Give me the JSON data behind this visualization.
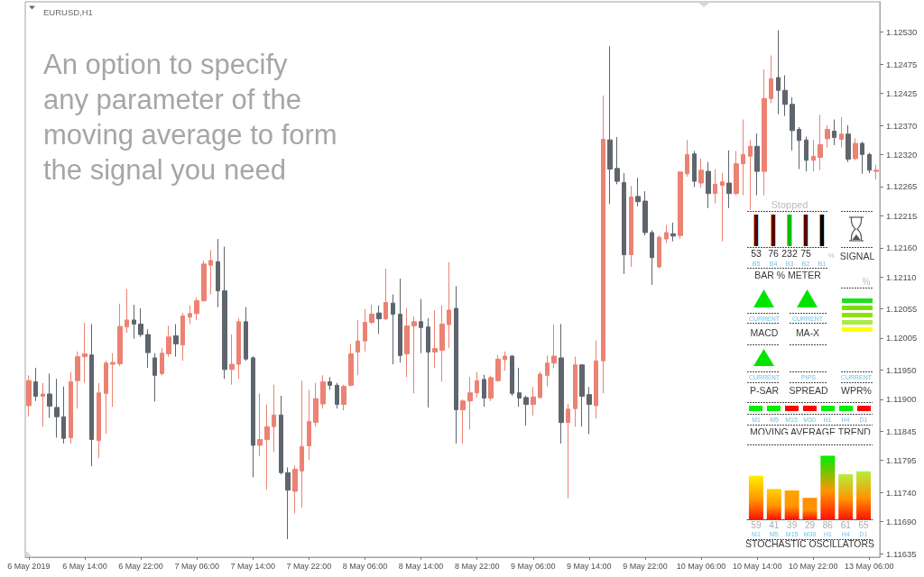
{
  "chart_data": [
    {
      "type": "candlestick",
      "title": "EURUSD,H1",
      "annotations": [
        "An option to specify\nany parameter of the\nmoving average to form\nthe signal you need"
      ],
      "categories": [
        "6 May 2019",
        null,
        null,
        null,
        null,
        null,
        null,
        null,
        "6 May 14:00",
        null,
        null,
        null,
        null,
        null,
        null,
        null,
        "6 May 22:00",
        null,
        null,
        null,
        null,
        null,
        null,
        null,
        "7 May 06:00",
        null,
        null,
        null,
        null,
        null,
        null,
        null,
        "7 May 14:00",
        null,
        null,
        null,
        null,
        null,
        null,
        null,
        "7 May 22:00",
        null,
        null,
        null,
        null,
        null,
        null,
        null,
        "8 May 06:00",
        null,
        null,
        null,
        null,
        null,
        null,
        null,
        "8 May 14:00",
        null,
        null,
        null,
        null,
        null,
        null,
        null,
        "8 May 22:00",
        null,
        null,
        null,
        null,
        null,
        null,
        null,
        "9 May 06:00",
        null,
        null,
        null,
        null,
        null,
        null,
        null,
        "9 May 14:00",
        null,
        null,
        null,
        null,
        null,
        null,
        null,
        "9 May 22:00",
        null,
        null,
        null,
        null,
        null,
        null,
        null,
        "10 May 06:00",
        null,
        null,
        null,
        null,
        null,
        null,
        null,
        "10 May 14:00",
        null,
        null,
        null,
        null,
        null,
        null,
        null,
        "10 May 22:00",
        null,
        null,
        null,
        null,
        null,
        null,
        null,
        "13 May 06:00",
        null
      ],
      "ohlc": [
        [
          1.11889,
          1.11941,
          1.1187,
          1.11932
        ],
        [
          1.1193,
          1.11954,
          1.11897,
          1.11905
        ],
        [
          1.11905,
          1.11928,
          1.11853,
          1.11909
        ],
        [
          1.11909,
          1.11944,
          1.11868,
          1.11888
        ],
        [
          1.11886,
          1.11935,
          1.11834,
          1.1187
        ],
        [
          1.1187,
          1.11922,
          1.11824,
          1.11833
        ],
        [
          1.11834,
          1.11947,
          1.11824,
          1.1193
        ],
        [
          1.11932,
          1.11982,
          1.11884,
          1.11973
        ],
        [
          1.11973,
          1.12031,
          1.11928,
          1.11978
        ],
        [
          1.11976,
          1.12029,
          1.11785,
          1.11831
        ],
        [
          1.11829,
          1.11928,
          1.11799,
          1.11911
        ],
        [
          1.1191,
          1.11966,
          1.11841,
          1.11962
        ],
        [
          1.1196,
          1.11979,
          1.11887,
          1.11963
        ],
        [
          1.11961,
          1.12064,
          1.11957,
          1.12025
        ],
        [
          1.12024,
          1.12089,
          1.12014,
          1.12036
        ],
        [
          1.12036,
          1.12062,
          1.12004,
          1.12029
        ],
        [
          1.12029,
          1.12056,
          1.12007,
          1.12011
        ],
        [
          1.12011,
          1.1202,
          1.11954,
          1.1198
        ],
        [
          1.11971,
          1.11979,
          1.11896,
          1.11941
        ],
        [
          1.11944,
          1.11988,
          1.11941,
          1.11979
        ],
        [
          1.11978,
          1.12026,
          1.11973,
          1.12007
        ],
        [
          1.12009,
          1.12029,
          1.11973,
          1.11995
        ],
        [
          1.11993,
          1.12048,
          1.11966,
          1.12043
        ],
        [
          1.12041,
          1.12061,
          1.12029,
          1.12047
        ],
        [
          1.12047,
          1.12075,
          1.12036,
          1.12069
        ],
        [
          1.12069,
          1.12138,
          1.12067,
          1.12132
        ],
        [
          1.1213,
          1.12156,
          1.1208,
          1.12138
        ],
        [
          1.12136,
          1.12175,
          1.12058,
          1.12086
        ],
        [
          1.12086,
          1.12162,
          1.11935,
          1.11951
        ],
        [
          1.11951,
          1.12011,
          1.11925,
          1.1196
        ],
        [
          1.1196,
          1.12039,
          1.11935,
          1.12033
        ],
        [
          1.12033,
          1.12058,
          1.11966,
          1.11969
        ],
        [
          1.11971,
          1.11974,
          1.11766,
          1.11821
        ],
        [
          1.11821,
          1.1191,
          1.11802,
          1.11831
        ],
        [
          1.11831,
          1.11891,
          1.11745,
          1.11853
        ],
        [
          1.11853,
          1.11925,
          1.11809,
          1.11873
        ],
        [
          1.11873,
          1.11906,
          1.11771,
          1.11774
        ],
        [
          1.11774,
          1.11783,
          1.1166,
          1.11744
        ],
        [
          1.11742,
          1.11786,
          1.11704,
          1.1178
        ],
        [
          1.11777,
          1.11932,
          1.11714,
          1.11819
        ],
        [
          1.1182,
          1.11916,
          1.11796,
          1.11862
        ],
        [
          1.1186,
          1.11928,
          1.11853,
          1.11901
        ],
        [
          1.11892,
          1.11941,
          1.11884,
          1.1193
        ],
        [
          1.1193,
          1.11938,
          1.11916,
          1.11924
        ],
        [
          1.11924,
          1.11928,
          1.11884,
          1.11891
        ],
        [
          1.11891,
          1.11925,
          1.11881,
          1.11922
        ],
        [
          1.11924,
          1.11995,
          1.11922,
          1.11978
        ],
        [
          1.11981,
          1.12036,
          1.11941,
          1.12
        ],
        [
          1.12,
          1.12055,
          1.11982,
          1.12032
        ],
        [
          1.12032,
          1.12062,
          1.12029,
          1.12046
        ],
        [
          1.12048,
          1.12061,
          1.12012,
          1.12038
        ],
        [
          1.12038,
          1.12124,
          1.12036,
          1.12066
        ],
        [
          1.12065,
          1.1208,
          1.1196,
          1.12046
        ],
        [
          1.12046,
          1.12107,
          1.11963,
          1.11975
        ],
        [
          1.11978,
          1.12056,
          1.11938,
          1.12026
        ],
        [
          1.12026,
          1.12042,
          1.1191,
          1.12033
        ],
        [
          1.12033,
          1.12072,
          1.11979,
          1.12023
        ],
        [
          1.12024,
          1.12039,
          1.11886,
          1.11981
        ],
        [
          1.11981,
          1.12053,
          1.11954,
          1.11987
        ],
        [
          1.11984,
          1.12061,
          1.1193,
          1.12029
        ],
        [
          1.12028,
          1.12135,
          1.11988,
          1.12053
        ],
        [
          1.12056,
          1.12094,
          1.11824,
          1.11882
        ],
        [
          1.11882,
          1.119,
          1.11824,
          1.11897
        ],
        [
          1.11897,
          1.11938,
          1.11848,
          1.11911
        ],
        [
          1.11911,
          1.11947,
          1.11903,
          1.11932
        ],
        [
          1.11934,
          1.11942,
          1.11887,
          1.11902
        ],
        [
          1.11902,
          1.1194,
          1.11897,
          1.11937
        ],
        [
          1.11932,
          1.11976,
          1.1193,
          1.11969
        ],
        [
          1.11968,
          1.11982,
          1.11949,
          1.11974
        ],
        [
          1.11974,
          1.11976,
          1.11906,
          1.1191
        ],
        [
          1.11911,
          1.11954,
          1.11887,
          1.11902
        ],
        [
          1.11903,
          1.11906,
          1.11855,
          1.11891
        ],
        [
          1.11891,
          1.11921,
          1.11872,
          1.11904
        ],
        [
          1.11903,
          1.11947,
          1.11902,
          1.11943
        ],
        [
          1.11941,
          1.11975,
          1.11922,
          1.11962
        ],
        [
          1.11962,
          1.12028,
          1.11954,
          1.11974
        ],
        [
          1.11971,
          1.12029,
          1.11824,
          1.1186
        ],
        [
          1.1186,
          1.11892,
          1.1173,
          1.11883
        ],
        [
          1.11884,
          1.11973,
          1.11853,
          1.11959
        ],
        [
          1.11959,
          1.1196,
          1.11853,
          1.11905
        ],
        [
          1.11908,
          1.11921,
          1.1184,
          1.11891
        ],
        [
          1.11889,
          1.12001,
          1.11867,
          1.11966
        ],
        [
          1.11966,
          1.12421,
          1.1191,
          1.12346
        ],
        [
          1.12345,
          1.12506,
          1.12235,
          1.12295
        ],
        [
          1.12296,
          1.1235,
          1.12269,
          1.12274
        ],
        [
          1.12272,
          1.12288,
          1.12115,
          1.12148
        ],
        [
          1.12148,
          1.12266,
          1.12127,
          1.12247
        ],
        [
          1.12248,
          1.1228,
          1.12231,
          1.12239
        ],
        [
          1.1224,
          1.12257,
          1.12181,
          1.12186
        ],
        [
          1.12186,
          1.1219,
          1.12096,
          1.12143
        ],
        [
          1.12127,
          1.12181,
          1.12125,
          1.12178
        ],
        [
          1.12175,
          1.12199,
          1.12168,
          1.12186
        ],
        [
          1.12184,
          1.12203,
          1.12171,
          1.1218
        ],
        [
          1.12181,
          1.12291,
          1.12175,
          1.1229
        ],
        [
          1.12287,
          1.12345,
          1.12282,
          1.1232
        ],
        [
          1.12321,
          1.12326,
          1.12264,
          1.12274
        ],
        [
          1.12271,
          1.12313,
          1.12263,
          1.12293
        ],
        [
          1.12291,
          1.12307,
          1.12228,
          1.12253
        ],
        [
          1.12253,
          1.12295,
          1.12236,
          1.12269
        ],
        [
          1.12267,
          1.12288,
          1.12171,
          1.12273
        ],
        [
          1.12271,
          1.12327,
          1.12228,
          1.12253
        ],
        [
          1.12253,
          1.12326,
          1.1225,
          1.12304
        ],
        [
          1.12304,
          1.1238,
          1.1225,
          1.1232
        ],
        [
          1.12317,
          1.12345,
          1.12225,
          1.12334
        ],
        [
          1.12334,
          1.12356,
          1.1225,
          1.12291
        ],
        [
          1.12291,
          1.12466,
          1.1225,
          1.12416
        ],
        [
          1.12416,
          1.1249,
          1.12408,
          1.1245
        ],
        [
          1.12452,
          1.12533,
          1.12389,
          1.1243
        ],
        [
          1.1243,
          1.12456,
          1.12386,
          1.12406
        ],
        [
          1.12406,
          1.12418,
          1.12327,
          1.12361
        ],
        [
          1.12363,
          1.12367,
          1.12295,
          1.12344
        ],
        [
          1.12345,
          1.12351,
          1.12291,
          1.1231
        ],
        [
          1.1231,
          1.12345,
          1.12291,
          1.12317
        ],
        [
          1.12315,
          1.12388,
          1.12293,
          1.12337
        ],
        [
          1.12347,
          1.1237,
          1.12332,
          1.12363
        ],
        [
          1.1236,
          1.1238,
          1.12336,
          1.12349
        ],
        [
          1.12346,
          1.12384,
          1.12332,
          1.12355
        ],
        [
          1.12355,
          1.1237,
          1.12307,
          1.12312
        ],
        [
          1.12313,
          1.12348,
          1.1231,
          1.12339
        ],
        [
          1.12339,
          1.12342,
          1.12287,
          1.1232
        ],
        [
          1.1232,
          1.12323,
          1.12288,
          1.12293
        ],
        [
          1.12291,
          1.12302,
          1.12277,
          1.12293
        ]
      ],
      "colors": [
        "#ec8273",
        "#5f656d",
        "#ec8273",
        "#5f656d",
        "#5f656d",
        "#5f656d",
        "#ec8273",
        "#ec8273",
        "#ec8273",
        "#5f656d",
        "#ec8273",
        "#ec8273",
        "#ec8273",
        "#ec8273",
        "#ec8273",
        "#5f656d",
        "#5f656d",
        "#5f656d",
        "#5f656d",
        "#ec8273",
        "#ec8273",
        "#5f656d",
        "#ec8273",
        "#ec8273",
        "#ec8273",
        "#ec8273",
        "#ec8273",
        "#5f656d",
        "#5f656d",
        "#ec8273",
        "#ec8273",
        "#5f656d",
        "#5f656d",
        "#ec8273",
        "#ec8273",
        "#ec8273",
        "#5f656d",
        "#5f656d",
        "#ec8273",
        "#ec8273",
        "#ec8273",
        "#ec8273",
        "#ec8273",
        "#5f656d",
        "#5f656d",
        "#ec8273",
        "#ec8273",
        "#ec8273",
        "#ec8273",
        "#ec8273",
        "#5f656d",
        "#ec8273",
        "#5f656d",
        "#5f656d",
        "#ec8273",
        "#ec8273",
        "#5f656d",
        "#5f656d",
        "#ec8273",
        "#ec8273",
        "#ec8273",
        "#5f656d",
        "#ec8273",
        "#ec8273",
        "#ec8273",
        "#5f656d",
        "#ec8273",
        "#ec8273",
        "#ec8273",
        "#5f656d",
        "#5f656d",
        "#5f656d",
        "#ec8273",
        "#ec8273",
        "#ec8273",
        "#ec8273",
        "#5f656d",
        "#ec8273",
        "#ec8273",
        "#5f656d",
        "#5f656d",
        "#ec8273",
        "#ec8273",
        "#5f656d",
        "#5f656d",
        "#5f656d",
        "#ec8273",
        "#5f656d",
        "#5f656d",
        "#5f656d",
        "#ec8273",
        "#ec8273",
        "#5f656d",
        "#ec8273",
        "#ec8273",
        "#5f656d",
        "#ec8273",
        "#5f656d",
        "#ec8273",
        "#ec8273",
        "#5f656d",
        "#ec8273",
        "#ec8273",
        "#ec8273",
        "#5f656d",
        "#ec8273",
        "#ec8273",
        "#5f656d",
        "#5f656d",
        "#5f656d",
        "#5f656d",
        "#5f656d",
        "#ec8273",
        "#ec8273",
        "#ec8273",
        "#5f656d",
        "#ec8273",
        "#5f656d",
        "#ec8273",
        "#5f656d",
        "#5f656d",
        "#ec8273"
      ],
      "ylim": [
        1.11629,
        1.12582
      ],
      "yticks": [
        {
          "value": 1.1253,
          "label": "1.12530"
        },
        {
          "value": 1.12475,
          "label": "1.12475"
        },
        {
          "value": 1.12425,
          "label": "1.12425"
        },
        {
          "value": 1.1237,
          "label": "1.12370"
        },
        {
          "value": 1.1232,
          "label": "1.12320"
        },
        {
          "value": 1.12265,
          "label": "1.12265"
        },
        {
          "value": 1.12215,
          "label": "1.12215"
        },
        {
          "value": 1.1216,
          "label": "1.12160"
        },
        {
          "value": 1.1211,
          "label": "1.12110"
        },
        {
          "value": 1.12055,
          "label": "1.12055"
        },
        {
          "value": 1.12005,
          "label": "1.12005"
        },
        {
          "value": 1.1195,
          "label": "1.11950"
        },
        {
          "value": 1.119,
          "label": "1.11900"
        },
        {
          "value": 1.11845,
          "label": "1.11845"
        },
        {
          "value": 1.11795,
          "label": "1.11795"
        },
        {
          "value": 1.1174,
          "label": "1.11740"
        },
        {
          "value": 1.1169,
          "label": "1.11690"
        },
        {
          "value": 1.11635,
          "label": "1.11635"
        }
      ]
    },
    {
      "type": "other",
      "annotations": [
        "Stopped",
        "53",
        "76",
        "232",
        "75",
        "%",
        "B5",
        "B4",
        "B3",
        "B2",
        "B1",
        "BAR % METER",
        "SIGNAL",
        "%",
        "CURRENT",
        "MACD",
        "CURRENT",
        "MA-X",
        "CURRENT",
        "P-SAR",
        "PIPS",
        "SPREAD",
        "CURRENT",
        "WPR%",
        "M1",
        "M5",
        "M15",
        "M30",
        "H1",
        "H4",
        "D1",
        "MOVING AVERAGE TREND"
      ]
    },
    {
      "type": "bar",
      "title": "STOCHASTIC OSCILLATORS",
      "categories": [
        "M1",
        "M5",
        "M15",
        "M30",
        "H1",
        "H4",
        "D1"
      ],
      "values": [
        59,
        41,
        39,
        29,
        86,
        61,
        65
      ],
      "colors": [
        "#ffee00",
        "#ffd200",
        "#ffa500",
        "#ff8c00",
        "#00ee00",
        "#b4f03c",
        "#b4f03c"
      ],
      "data_labels": true,
      "tick_labels": "x"
    }
  ]
}
